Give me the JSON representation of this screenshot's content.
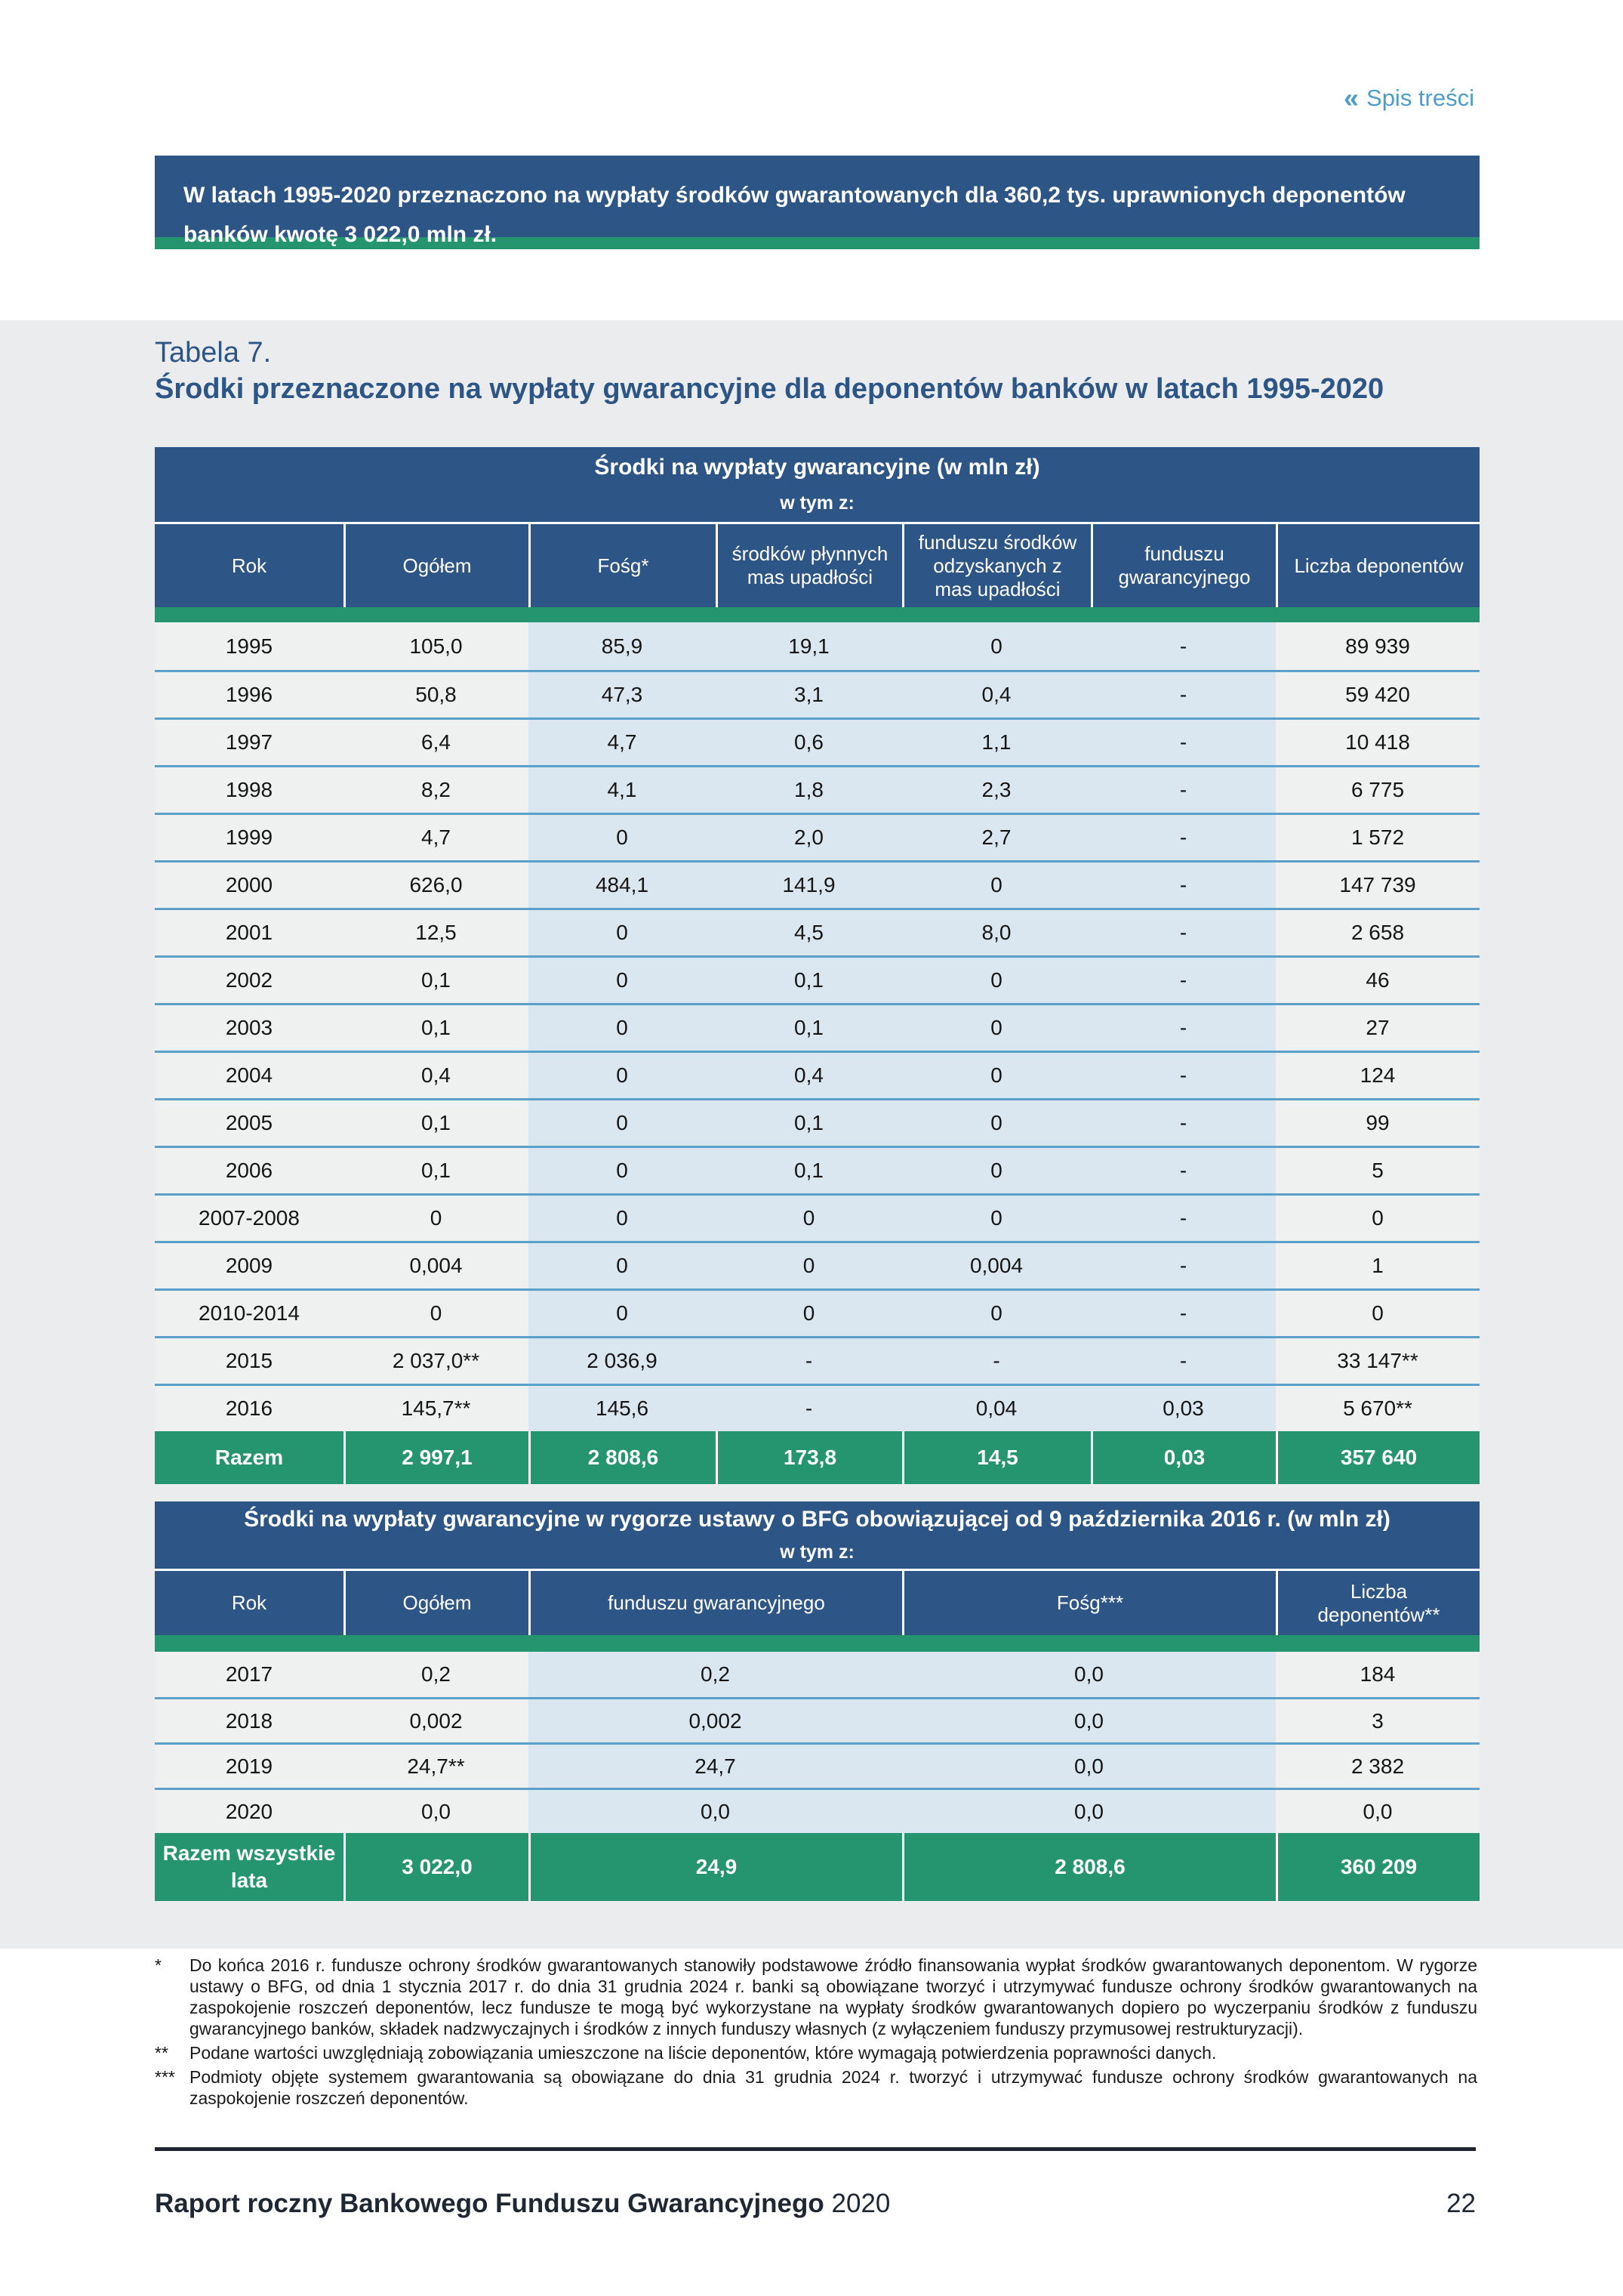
{
  "page": {
    "toc_icon": "«",
    "toc_label": "Spis treści",
    "page_number": "22",
    "footer_title_bold": "Raport roczny Bankowego Funduszu Gwarancyjnego",
    "footer_year": "2020"
  },
  "highlight_box": {
    "text": "W latach 1995-2020 przeznaczono na wypłaty środków gwarantowanych dla 360,2 tys. uprawnionych deponentów banków kwotę 3 022,0 mln zł."
  },
  "table_label": "Tabela 7.",
  "table_title": "Środki przeznaczone na wypłaty gwarancyjne dla deponentów banków w latach 1995-2020",
  "table1": {
    "band_title": "Środki na wypłaty gwarancyjne (w mln zł)",
    "band_subtitle": "w tym z:",
    "headers": [
      "Rok",
      "Ogółem",
      "Fośg*",
      "środków płynnych mas upadłości",
      "funduszu środków odzyskanych z mas upadłości",
      "funduszu gwarancyjnego",
      "Liczba deponentów"
    ],
    "rows": [
      [
        "1995",
        "105,0",
        "85,9",
        "19,1",
        "0",
        "-",
        "89 939"
      ],
      [
        "1996",
        "50,8",
        "47,3",
        "3,1",
        "0,4",
        "-",
        "59 420"
      ],
      [
        "1997",
        "6,4",
        "4,7",
        "0,6",
        "1,1",
        "-",
        "10 418"
      ],
      [
        "1998",
        "8,2",
        "4,1",
        "1,8",
        "2,3",
        "-",
        "6 775"
      ],
      [
        "1999",
        "4,7",
        "0",
        "2,0",
        "2,7",
        "-",
        "1 572"
      ],
      [
        "2000",
        "626,0",
        "484,1",
        "141,9",
        "0",
        "-",
        "147 739"
      ],
      [
        "2001",
        "12,5",
        "0",
        "4,5",
        "8,0",
        "-",
        "2 658"
      ],
      [
        "2002",
        "0,1",
        "0",
        "0,1",
        "0",
        "-",
        "46"
      ],
      [
        "2003",
        "0,1",
        "0",
        "0,1",
        "0",
        "-",
        "27"
      ],
      [
        "2004",
        "0,4",
        "0",
        "0,4",
        "0",
        "-",
        "124"
      ],
      [
        "2005",
        "0,1",
        "0",
        "0,1",
        "0",
        "-",
        "99"
      ],
      [
        "2006",
        "0,1",
        "0",
        "0,1",
        "0",
        "-",
        "5"
      ],
      [
        "2007-2008",
        "0",
        "0",
        "0",
        "0",
        "-",
        "0"
      ],
      [
        "2009",
        "0,004",
        "0",
        "0",
        "0,004",
        "-",
        "1"
      ],
      [
        "2010-2014",
        "0",
        "0",
        "0",
        "0",
        "-",
        "0"
      ],
      [
        "2015",
        "2 037,0**",
        "2 036,9",
        "-",
        "-",
        "-",
        "33 147**"
      ],
      [
        "2016",
        "145,7**",
        "145,6",
        "-",
        "0,04",
        "0,03",
        "5 670**"
      ]
    ],
    "total": [
      "Razem",
      "2 997,1",
      "2 808,6",
      "173,8",
      "14,5",
      "0,03",
      "357 640"
    ]
  },
  "table2": {
    "band_title": "Środki na wypłaty gwarancyjne w rygorze ustawy o BFG obowiązującej od 9 października 2016 r. (w mln zł)",
    "band_subtitle": "w tym z:",
    "headers": [
      "Rok",
      "Ogółem",
      "funduszu gwarancyjnego",
      "Fośg***",
      "Liczba deponentów**"
    ],
    "rows": [
      [
        "2017",
        "0,2",
        "0,2",
        "0,0",
        "184"
      ],
      [
        "2018",
        "0,002",
        "0,002",
        "0,0",
        "3"
      ],
      [
        "2019",
        "24,7**",
        "24,7",
        "0,0",
        "2 382"
      ],
      [
        "2020",
        "0,0",
        "0,0",
        "0,0",
        "0,0"
      ]
    ],
    "total": [
      "Razem wszystkie lata",
      "3 022,0",
      "24,9",
      "2 808,6",
      "360 209"
    ]
  },
  "footnotes": [
    {
      "marker": "*",
      "text": "Do końca 2016 r. fundusze ochrony środków gwarantowanych stanowiły podstawowe źródło finansowania wypłat środków gwarantowanych deponentom. W rygorze ustawy o BFG, od dnia 1 stycznia 2017 r. do dnia 31 grudnia 2024 r. banki są obowiązane tworzyć i utrzymywać fundusze ochrony środków gwarantowanych na zaspokojenie roszczeń deponentów, lecz fundusze te mogą być wykorzystane na wypłaty środków gwarantowanych dopiero po wyczerpaniu środków z funduszu gwarancyjnego banków, składek nadzwyczajnych i środków z innych funduszy własnych (z wyłączeniem funduszy przymusowej restrukturyzacji)."
    },
    {
      "marker": "**",
      "text": "Podane wartości uwzględniają zobowiązania umieszczone na liście deponentów, które wymagają potwierdzenia poprawności danych."
    },
    {
      "marker": "***",
      "text": "Podmioty objęte systemem gwarantowania są obowiązane do dnia 31 grudnia 2024 r. tworzyć i utrzymywać fundusze ochrony środków gwarantowanych na zaspokojenie roszczeń deponentów."
    }
  ],
  "colors": {
    "navy": "#2d5585",
    "green": "#24956e",
    "light_blue_cell": "#dbe7f0",
    "row_separator_blue": "#5aa0c9",
    "section_gray": "#ebeced",
    "link_blue": "#4d9cc9"
  }
}
